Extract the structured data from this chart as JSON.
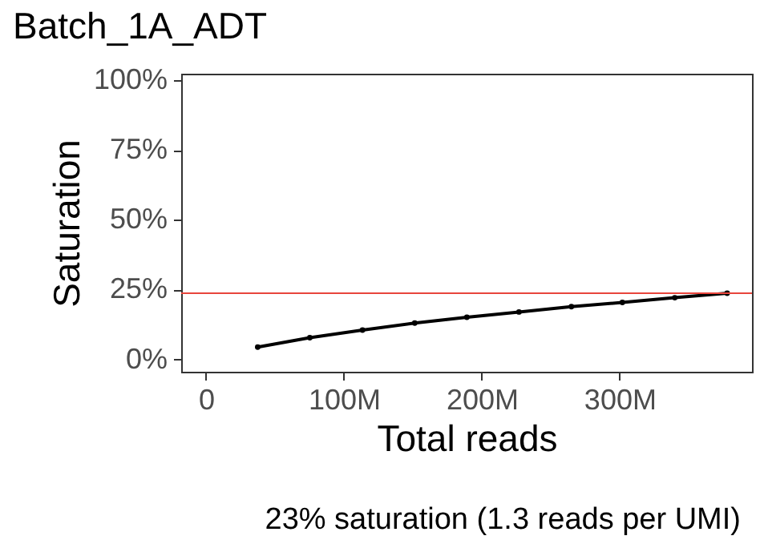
{
  "chart_data": {
    "type": "line",
    "title": "Batch_1A_ADT",
    "xlabel": "Total reads",
    "ylabel": "Saturation",
    "x": [
      37500000,
      75300000,
      113500000,
      151400000,
      189200000,
      227000000,
      265000000,
      302000000,
      340000000,
      378000000
    ],
    "series": [
      {
        "color": "#000000",
        "values": [
          4.4,
          7.8,
          10.5,
          13.0,
          15.1,
          17.0,
          18.9,
          20.4,
          22.1,
          23.7
        ]
      }
    ],
    "xlim": [
      -18000000,
      396000000
    ],
    "xticks": [
      0,
      {
        "value": 100000000,
        "label": "100M"
      },
      {
        "value": 200000000,
        "label": "200M"
      },
      {
        "value": 300000000,
        "label": "300M"
      }
    ],
    "ylim": [
      -4.4,
      102.3
    ],
    "yticks": [
      {
        "value": 0,
        "label": "0%"
      },
      {
        "value": 25,
        "label": "25%"
      },
      {
        "value": 50,
        "label": "50%"
      },
      {
        "value": 75,
        "label": "75%"
      },
      {
        "value": 100,
        "label": "100%"
      }
    ],
    "ref_lines": [
      {
        "axis": "y",
        "value": 23.7,
        "color": "#e8453c"
      }
    ],
    "annotations": [
      "23% saturation (1.3 reads per UMI)"
    ],
    "marker": "circle",
    "grid": false
  }
}
